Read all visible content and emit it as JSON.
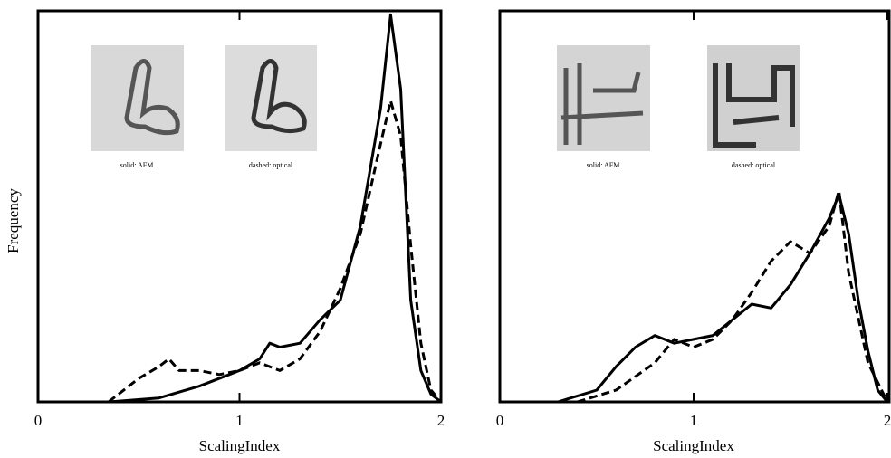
{
  "chart_data": [
    {
      "type": "line",
      "x_label": "ScalingIndex",
      "y_label": "Frequency",
      "xlim": [
        0,
        2
      ],
      "ylim": [
        0,
        1
      ],
      "xticks": [
        0,
        1,
        2
      ],
      "annotations": [
        "solid: AFM",
        "dashed: optical"
      ],
      "series": [
        {
          "color": "#000000",
          "line_style": "solid",
          "x": [
            0.35,
            0.6,
            0.8,
            1.0,
            1.1,
            1.15,
            1.2,
            1.3,
            1.4,
            1.5,
            1.6,
            1.7,
            1.75,
            1.8,
            1.85,
            1.9,
            1.95,
            2.0
          ],
          "values": [
            0,
            0.01,
            0.04,
            0.08,
            0.11,
            0.15,
            0.14,
            0.15,
            0.21,
            0.26,
            0.45,
            0.75,
            0.99,
            0.8,
            0.26,
            0.08,
            0.02,
            0
          ]
        },
        {
          "color": "#000000",
          "line_style": "dashed",
          "x": [
            0.35,
            0.5,
            0.6,
            0.65,
            0.7,
            0.8,
            0.9,
            1.0,
            1.1,
            1.15,
            1.2,
            1.3,
            1.4,
            1.5,
            1.6,
            1.7,
            1.75,
            1.8,
            1.85,
            1.9,
            1.95,
            2.0
          ],
          "values": [
            0,
            0.06,
            0.09,
            0.11,
            0.08,
            0.08,
            0.07,
            0.08,
            0.1,
            0.09,
            0.08,
            0.11,
            0.18,
            0.29,
            0.43,
            0.66,
            0.77,
            0.68,
            0.4,
            0.15,
            0.03,
            0
          ]
        }
      ]
    },
    {
      "type": "line",
      "x_label": "ScalingIndex",
      "xlim": [
        0,
        2
      ],
      "ylim": [
        0,
        1
      ],
      "xticks": [
        0,
        1,
        2
      ],
      "annotations": [
        "solid: AFM",
        "dashed: optical"
      ],
      "series": [
        {
          "color": "#000000",
          "line_style": "solid",
          "x": [
            0.3,
            0.5,
            0.6,
            0.7,
            0.8,
            0.9,
            1.0,
            1.1,
            1.2,
            1.3,
            1.4,
            1.5,
            1.6,
            1.7,
            1.75,
            1.8,
            1.85,
            1.9,
            1.95,
            2.0
          ],
          "values": [
            0,
            0.03,
            0.09,
            0.14,
            0.17,
            0.15,
            0.16,
            0.17,
            0.21,
            0.25,
            0.24,
            0.3,
            0.38,
            0.47,
            0.53,
            0.43,
            0.26,
            0.13,
            0.03,
            0
          ]
        },
        {
          "color": "#000000",
          "line_style": "dashed",
          "x": [
            0.4,
            0.6,
            0.8,
            0.9,
            1.0,
            1.1,
            1.2,
            1.3,
            1.4,
            1.5,
            1.6,
            1.7,
            1.75,
            1.8,
            1.9,
            2.0
          ],
          "values": [
            0,
            0.03,
            0.1,
            0.16,
            0.14,
            0.16,
            0.21,
            0.28,
            0.36,
            0.41,
            0.38,
            0.45,
            0.54,
            0.33,
            0.1,
            0
          ]
        }
      ]
    }
  ]
}
